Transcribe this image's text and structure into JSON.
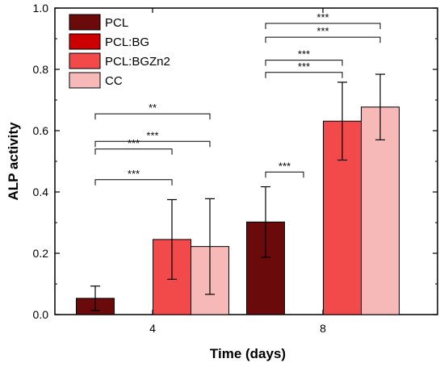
{
  "chart_data": {
    "type": "bar",
    "xlabel": "Time (days)",
    "ylabel": "ALP activity",
    "ylim": [
      0,
      1.0
    ],
    "y_ticks": [
      "0.0",
      "0.2",
      "0.4",
      "0.6",
      "0.8",
      "1.0"
    ],
    "categories": [
      "4",
      "8"
    ],
    "legend_position": "top-left",
    "series": [
      {
        "name": "PCL",
        "color": "#6b0a0a",
        "values": [
          0.053,
          0.302
        ],
        "errors": [
          0.04,
          0.115
        ]
      },
      {
        "name": "PCL:BG",
        "color": "#cc0000",
        "values": [
          0.0,
          0.0
        ],
        "errors": [
          0,
          0
        ]
      },
      {
        "name": "PCL:BGZn2",
        "color": "#f24a4a",
        "values": [
          0.245,
          0.631
        ],
        "errors": [
          0.13,
          0.127
        ]
      },
      {
        "name": "CC",
        "color": "#f7b8b8",
        "values": [
          0.222,
          0.677
        ],
        "errors": [
          0.156,
          0.107
        ]
      }
    ],
    "significance": [
      {
        "category": "4",
        "from_series": 0,
        "to_series": 2,
        "y": 0.44,
        "label": "***"
      },
      {
        "category": "4",
        "from_series": 0,
        "to_series": 2,
        "y": 0.54,
        "label": "***"
      },
      {
        "category": "4",
        "from_series": 0,
        "to_series": 3,
        "y": 0.565,
        "label": "***"
      },
      {
        "category": "4",
        "from_series": 0,
        "to_series": 3,
        "y": 0.655,
        "label": "**"
      },
      {
        "category": "8",
        "from_series": 0,
        "to_series": 1,
        "y": 0.465,
        "label": "***"
      },
      {
        "category": "8",
        "from_series": 0,
        "to_series": 2,
        "y": 0.79,
        "label": "***"
      },
      {
        "category": "8",
        "from_series": 0,
        "to_series": 2,
        "y": 0.83,
        "label": "***"
      },
      {
        "category": "8",
        "from_series": 0,
        "to_series": 3,
        "y": 0.95,
        "label": "***"
      },
      {
        "category": "8",
        "from_series": 0,
        "to_series": 3,
        "y": 0.905,
        "label": "***"
      }
    ]
  }
}
